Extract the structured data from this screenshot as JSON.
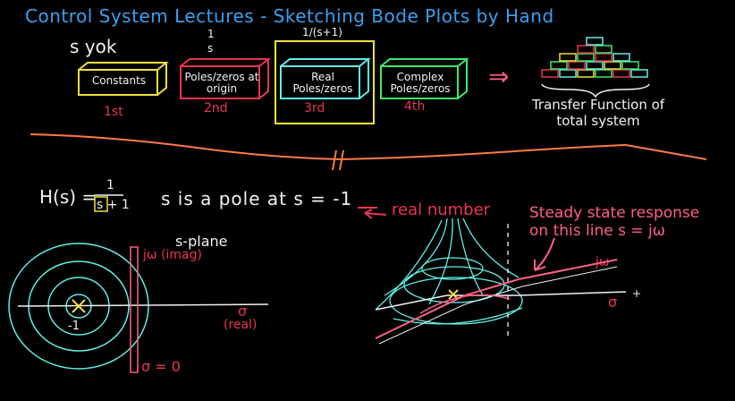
{
  "title": "Control System Lectures - Sketching Bode Plots by Hand",
  "notes": {
    "syok": "s yok",
    "one_over_s_num": "1",
    "one_over_s_den": "s",
    "one_over_s1": "1/(s+1)"
  },
  "blocks": [
    {
      "label": "Constants",
      "order": "1st"
    },
    {
      "label": "Poles/zeros at origin",
      "order": "2nd"
    },
    {
      "label": "Real Poles/zeros",
      "order": "3rd"
    },
    {
      "label": "Complex Poles/zeros",
      "order": "4th"
    }
  ],
  "arrow_symbol": "⇒",
  "transfer_function_label": "Transfer Function of total system",
  "equation": {
    "lhs": "H(s) =",
    "num": "1",
    "den": "s + 1",
    "statement": "s is a pole at s = -1",
    "real_number_note": "real number"
  },
  "splane": {
    "title": "s-plane",
    "jw_label": "jω (imag)",
    "sigma_label": "σ",
    "sigma_sub": "(real)",
    "sigma_zero": "σ = 0",
    "pole_label": "-1"
  },
  "surface": {
    "steady_state": "Steady state response",
    "on_line": "on this line s = jω",
    "jw": "jω",
    "sigma": "σ"
  },
  "colors": {
    "title": "#3aa0f0",
    "yellow": "#f0e040",
    "red": "#e8364f",
    "green": "#3dea6a",
    "cyan": "#5ff0e6",
    "pink": "#ff5f86",
    "orange": "#ff7a4a"
  }
}
